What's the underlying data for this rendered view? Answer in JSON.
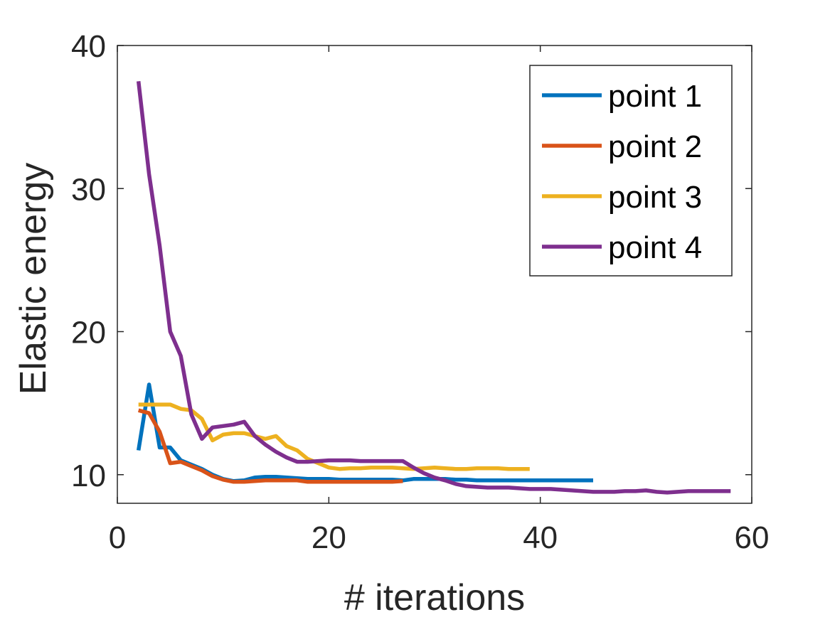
{
  "chart_data": {
    "type": "line",
    "title": "",
    "xlabel": "# iterations",
    "ylabel": "Elastic energy",
    "xlim": [
      0,
      60
    ],
    "ylim": [
      8,
      40
    ],
    "xticks": [
      0,
      20,
      40,
      60
    ],
    "yticks": [
      10,
      20,
      30,
      40
    ],
    "xtick_labels": [
      "0",
      "20",
      "40",
      "60"
    ],
    "ytick_labels": [
      "10",
      "20",
      "30",
      "40"
    ],
    "grid": false,
    "legend_position": "top-right",
    "series": [
      {
        "name": "point 1",
        "color": "#0072BD",
        "x": [
          2,
          3,
          4,
          5,
          6,
          7,
          8,
          9,
          10,
          11,
          12,
          13,
          14,
          15,
          16,
          17,
          18,
          19,
          20,
          21,
          22,
          23,
          24,
          25,
          26,
          27,
          28,
          29,
          30,
          31,
          32,
          33,
          34,
          35,
          36,
          37,
          38,
          39,
          40,
          41,
          42,
          43,
          44,
          45
        ],
        "y": [
          11.7,
          16.3,
          11.9,
          11.9,
          11.0,
          10.7,
          10.4,
          10.0,
          9.7,
          9.55,
          9.6,
          9.8,
          9.85,
          9.85,
          9.8,
          9.75,
          9.7,
          9.7,
          9.7,
          9.65,
          9.65,
          9.65,
          9.65,
          9.65,
          9.65,
          9.6,
          9.7,
          9.7,
          9.7,
          9.7,
          9.65,
          9.65,
          9.6,
          9.6,
          9.6,
          9.6,
          9.6,
          9.6,
          9.6,
          9.6,
          9.6,
          9.6,
          9.6,
          9.6
        ]
      },
      {
        "name": "point 2",
        "color": "#D95319",
        "x": [
          2,
          3,
          4,
          5,
          6,
          7,
          8,
          9,
          10,
          11,
          12,
          13,
          14,
          15,
          16,
          17,
          18,
          19,
          20,
          21,
          22,
          23,
          24,
          25,
          26,
          27
        ],
        "y": [
          14.5,
          14.3,
          13.0,
          10.8,
          10.9,
          10.6,
          10.3,
          9.9,
          9.65,
          9.5,
          9.5,
          9.55,
          9.6,
          9.6,
          9.6,
          9.6,
          9.5,
          9.5,
          9.5,
          9.5,
          9.5,
          9.5,
          9.5,
          9.5,
          9.5,
          9.55
        ]
      },
      {
        "name": "point 3",
        "color": "#EDB120",
        "x": [
          2,
          3,
          4,
          5,
          6,
          7,
          8,
          9,
          10,
          11,
          12,
          13,
          14,
          15,
          16,
          17,
          18,
          19,
          20,
          21,
          22,
          23,
          24,
          25,
          26,
          27,
          28,
          29,
          30,
          31,
          32,
          33,
          34,
          35,
          36,
          37,
          38,
          39
        ],
        "y": [
          14.9,
          14.9,
          14.9,
          14.9,
          14.6,
          14.5,
          13.9,
          12.4,
          12.8,
          12.9,
          12.9,
          12.7,
          12.5,
          12.7,
          12.0,
          11.7,
          11.1,
          10.8,
          10.5,
          10.4,
          10.45,
          10.45,
          10.5,
          10.5,
          10.5,
          10.45,
          10.4,
          10.45,
          10.5,
          10.45,
          10.4,
          10.4,
          10.45,
          10.45,
          10.45,
          10.4,
          10.4,
          10.4
        ]
      },
      {
        "name": "point 4",
        "color": "#7E2F8E",
        "x": [
          2,
          3,
          4,
          5,
          6,
          7,
          8,
          9,
          10,
          11,
          12,
          13,
          14,
          15,
          16,
          17,
          18,
          19,
          20,
          21,
          22,
          23,
          24,
          25,
          26,
          27,
          28,
          29,
          30,
          31,
          32,
          33,
          34,
          35,
          36,
          37,
          38,
          39,
          40,
          41,
          42,
          43,
          44,
          45,
          46,
          47,
          48,
          49,
          50,
          51,
          52,
          53,
          54,
          55,
          56,
          57,
          58
        ],
        "y": [
          37.5,
          31.0,
          26.0,
          20.0,
          18.3,
          14.2,
          12.5,
          13.3,
          13.4,
          13.5,
          13.7,
          12.7,
          12.1,
          11.6,
          11.2,
          10.9,
          10.9,
          10.95,
          11.0,
          11.0,
          11.0,
          10.95,
          10.95,
          10.95,
          10.95,
          10.95,
          10.5,
          10.1,
          9.8,
          9.6,
          9.35,
          9.2,
          9.15,
          9.1,
          9.1,
          9.1,
          9.05,
          9.0,
          9.0,
          9.0,
          8.95,
          8.9,
          8.85,
          8.8,
          8.8,
          8.8,
          8.85,
          8.85,
          8.9,
          8.8,
          8.75,
          8.8,
          8.85,
          8.85,
          8.85,
          8.85,
          8.85
        ]
      }
    ]
  }
}
